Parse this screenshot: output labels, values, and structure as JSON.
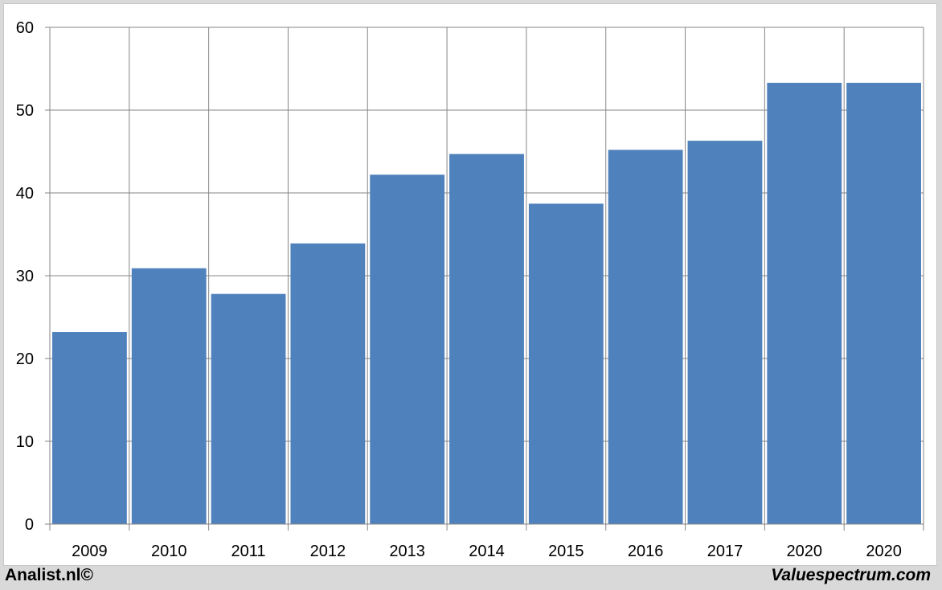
{
  "chart_data": {
    "type": "bar",
    "categories": [
      "2009",
      "2010",
      "2011",
      "2012",
      "2013",
      "2014",
      "2015",
      "2016",
      "2017",
      "2020",
      "2020"
    ],
    "values": [
      23.2,
      30.9,
      27.8,
      33.9,
      42.2,
      44.7,
      38.7,
      45.2,
      46.3,
      53.3,
      53.3
    ],
    "title": "",
    "xlabel": "",
    "ylabel": "",
    "ylim": [
      0,
      60
    ],
    "yticks": [
      "0",
      "10",
      "20",
      "30",
      "40",
      "50",
      "60"
    ],
    "grid": true,
    "legend": "none",
    "bar_color": "#4f81bd"
  },
  "footer": {
    "left_text": "Analist.nl©",
    "right_text": "Valuespectrum.com"
  }
}
